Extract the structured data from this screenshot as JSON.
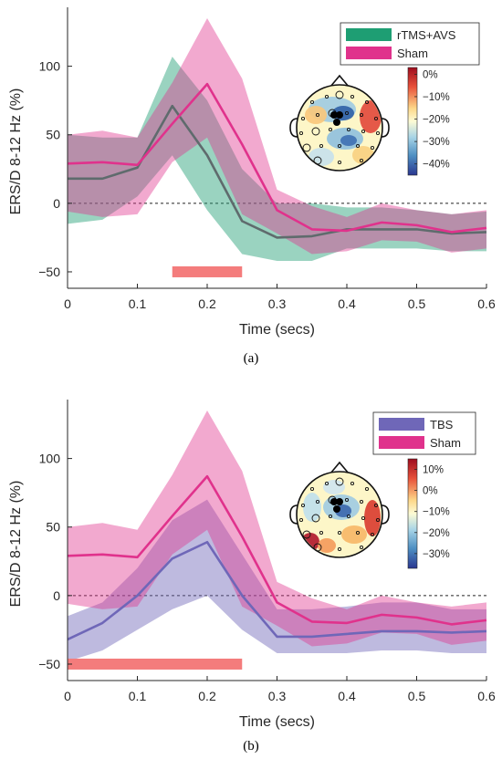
{
  "chart_data": [
    {
      "type": "line",
      "caption": "(a)",
      "xlabel": "Time (secs)",
      "ylabel": "ERS/D 8-12 Hz (%)",
      "xlim": [
        0,
        0.6
      ],
      "ylim": [
        -62,
        143
      ],
      "xticks": [
        "0",
        "0.1",
        "0.2",
        "0.3",
        "0.4",
        "0.5",
        "0.6"
      ],
      "yticks": [
        "−50",
        "0",
        "50",
        "100"
      ],
      "legend_position": "top-right",
      "x": [
        0,
        0.05,
        0.1,
        0.15,
        0.2,
        0.25,
        0.3,
        0.35,
        0.4,
        0.45,
        0.5,
        0.55,
        0.6
      ],
      "series": [
        {
          "name": "rTMS+AVS",
          "color": "#1e9e73",
          "values": [
            18,
            18,
            26,
            71,
            35,
            -13,
            -25,
            -24,
            -19,
            -19,
            -19,
            -22,
            -21
          ],
          "upper": [
            50,
            48,
            48,
            107,
            75,
            25,
            0,
            0,
            -3,
            -3,
            -5,
            -8,
            -6
          ],
          "lower": [
            -15,
            -12,
            5,
            35,
            -5,
            -37,
            -42,
            -42,
            -33,
            -33,
            -33,
            -35,
            -35
          ]
        },
        {
          "name": "Sham",
          "color": "#e0328c",
          "values": [
            29,
            30,
            28,
            58,
            87,
            43,
            -5,
            -19,
            -20,
            -14,
            -16,
            -21,
            -18
          ],
          "upper": [
            50,
            53,
            48,
            88,
            135,
            91,
            10,
            -2,
            -10,
            0,
            -5,
            -8,
            -5
          ],
          "lower": [
            -6,
            -10,
            -8,
            30,
            48,
            -8,
            -22,
            -37,
            -35,
            -27,
            -28,
            -36,
            -33
          ]
        }
      ],
      "significance_bar": {
        "x_start": 0.15,
        "x_end": 0.25,
        "y": -50,
        "color": "#f47c7c"
      },
      "topomap": {
        "colorbar_ticks": [
          "0%",
          "−10%",
          "−20%",
          "−30%",
          "−40%"
        ],
        "colorbar_range": [
          -45,
          3
        ]
      }
    },
    {
      "type": "line",
      "caption": "(b)",
      "xlabel": "Time (secs)",
      "ylabel": "ERS/D 8-12 Hz (%)",
      "xlim": [
        0,
        0.6
      ],
      "ylim": [
        -62,
        143
      ],
      "xticks": [
        "0",
        "0.1",
        "0.2",
        "0.3",
        "0.4",
        "0.5",
        "0.6"
      ],
      "yticks": [
        "−50",
        "0",
        "50",
        "100"
      ],
      "legend_position": "top-right",
      "x": [
        0,
        0.05,
        0.1,
        0.15,
        0.2,
        0.25,
        0.3,
        0.35,
        0.4,
        0.45,
        0.5,
        0.55,
        0.6
      ],
      "series": [
        {
          "name": "TBS",
          "color": "#6f67b8",
          "values": [
            -32,
            -20,
            0,
            27,
            39,
            0,
            -30,
            -30,
            -28,
            -26,
            -26,
            -27,
            -26
          ],
          "upper": [
            -15,
            -5,
            20,
            55,
            70,
            30,
            -10,
            -10,
            -8,
            -5,
            -5,
            -10,
            -10
          ],
          "lower": [
            -48,
            -40,
            -25,
            -10,
            0,
            -25,
            -42,
            -42,
            -42,
            -40,
            -40,
            -42,
            -42
          ]
        },
        {
          "name": "Sham",
          "color": "#e0328c",
          "values": [
            29,
            30,
            28,
            58,
            87,
            43,
            -5,
            -19,
            -20,
            -14,
            -16,
            -21,
            -18
          ],
          "upper": [
            50,
            53,
            48,
            88,
            135,
            91,
            10,
            -2,
            -10,
            0,
            -5,
            -8,
            -5
          ],
          "lower": [
            -6,
            -10,
            -8,
            30,
            48,
            -8,
            -22,
            -37,
            -35,
            -27,
            -28,
            -36,
            -33
          ]
        }
      ],
      "significance_bar": {
        "x_start": 0,
        "x_end": 0.25,
        "y": -50,
        "color": "#f47c7c"
      },
      "topomap": {
        "colorbar_ticks": [
          "10%",
          "0%",
          "−10%",
          "−20%",
          "−30%"
        ],
        "colorbar_range": [
          -37,
          15
        ]
      }
    }
  ]
}
